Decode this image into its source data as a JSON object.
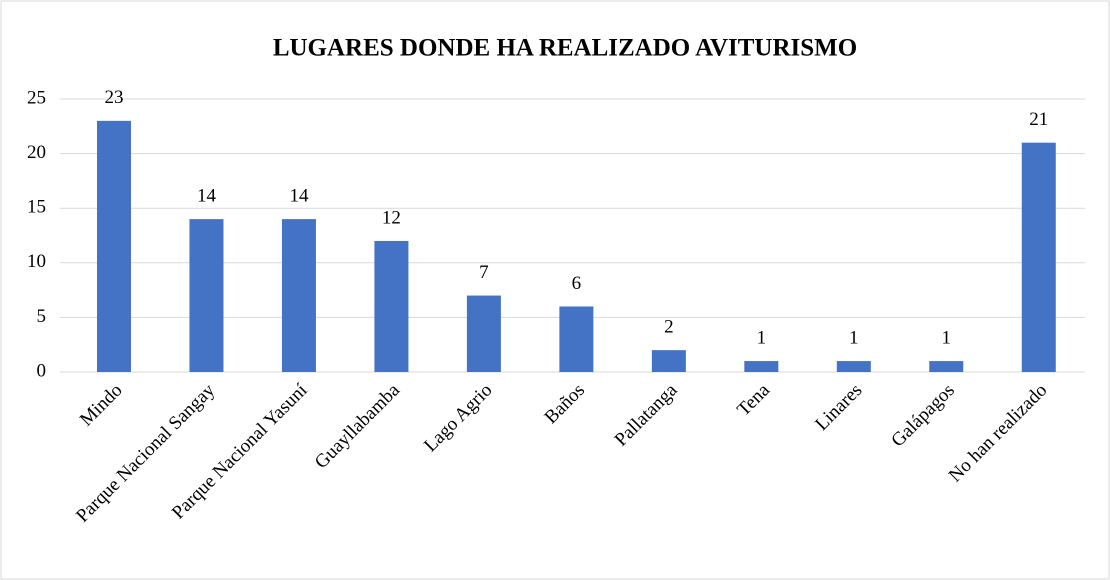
{
  "chart_data": {
    "type": "bar",
    "title": "LUGARES DONDE HA REALIZADO AVITURISMO",
    "categories": [
      "Mindo",
      "Parque Nacional Sangay",
      "Parque Nacional Yasuní",
      "Guayllabamba",
      "Lago Agrio",
      "Baños",
      "Pallatanga",
      "Tena",
      "Linares",
      "Galápagos",
      "No han realizado"
    ],
    "values": [
      23,
      14,
      14,
      12,
      7,
      6,
      2,
      1,
      1,
      1,
      21
    ],
    "color": "#4472c4",
    "ylim": [
      0,
      25
    ],
    "yticks": [
      0,
      5,
      10,
      15,
      20,
      25
    ],
    "grid": true
  }
}
